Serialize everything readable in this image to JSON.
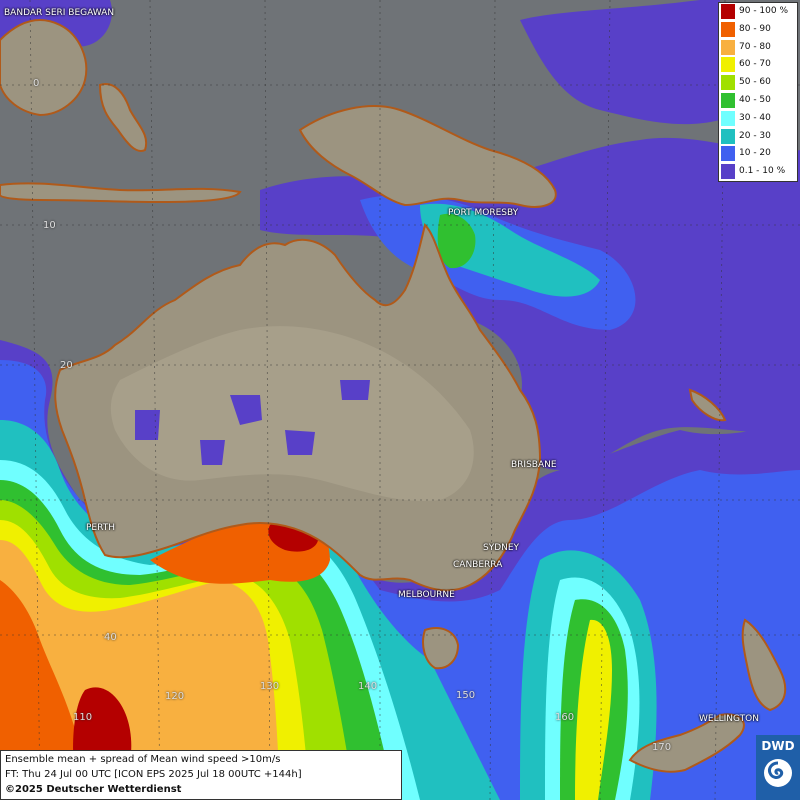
{
  "legend": {
    "items": [
      {
        "label": "90 - 100 %",
        "color": "#b40000"
      },
      {
        "label": "80 - 90",
        "color": "#f06000"
      },
      {
        "label": "70 - 80",
        "color": "#f8b040"
      },
      {
        "label": "60 - 70",
        "color": "#f0f000"
      },
      {
        "label": "50 - 60",
        "color": "#a0e000"
      },
      {
        "label": "40 - 50",
        "color": "#30c030"
      },
      {
        "label": "30 - 40",
        "color": "#70ffff"
      },
      {
        "label": "20 - 30",
        "color": "#20c0c0"
      },
      {
        "label": "10 - 20",
        "color": "#4060f0"
      },
      {
        "label": "0.1 - 10 %",
        "color": "#5840c8"
      }
    ]
  },
  "cities": {
    "bandar": "BANDAR SERI BEGAWAN",
    "port_moresby": "PORT MORESBY",
    "brisbane": "BRISBANE",
    "perth": "PERTH",
    "sydney": "SYDNEY",
    "canberra": "CANBERRA",
    "melbourne": "MELBOURNE",
    "wellington": "WELLINGTON"
  },
  "grid_labels": {
    "lat_0": "0",
    "lat_10": "10",
    "lat_20": "20",
    "lat_40": "40",
    "lon_110": "110",
    "lon_120": "120",
    "lon_130": "130",
    "lon_140": "140",
    "lon_150": "150",
    "lon_160": "160",
    "lon_170": "170"
  },
  "info": {
    "line1": "Ensemble mean + spread of Mean wind speed >10m/s",
    "line2": "FT: Thu 24 Jul 00 UTC [ICON EPS 2025 Jul 18 00UTC +144h]",
    "line3": "©2025 Deutscher Wetterdienst"
  },
  "logo": {
    "text": "DWD"
  }
}
